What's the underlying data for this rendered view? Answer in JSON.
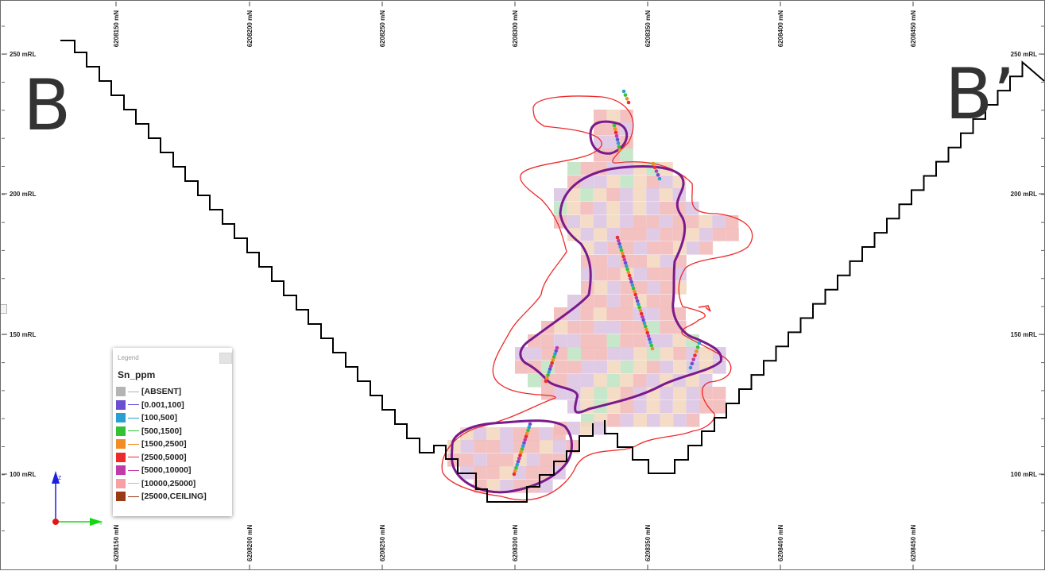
{
  "view": {
    "frame_border_color": "#6a6a6a",
    "section_labels": {
      "start": "B",
      "end": "B’"
    },
    "northing_ticks": [
      "6208150 mN",
      "6208200 mN",
      "6208250 mN",
      "6208300 mN",
      "6208350 mN",
      "6208400 mN",
      "6208450 mN"
    ],
    "elevation_ticks": [
      "250 mRL",
      "200 mRL",
      "150 mRL",
      "100 mRL"
    ]
  },
  "legend": {
    "title": "Legend",
    "variable": "Sn_ppm",
    "items": [
      {
        "label": "[ABSENT]",
        "color": "#b4b4b4"
      },
      {
        "label": "[0.001,100]",
        "color": "#6a4fd0"
      },
      {
        "label": "[100,500]",
        "color": "#2aa0d2"
      },
      {
        "label": "[500,1500]",
        "color": "#33c233"
      },
      {
        "label": "[1500,2500]",
        "color": "#f28c25"
      },
      {
        "label": "[2500,5000]",
        "color": "#ee2a2a"
      },
      {
        "label": "[5000,10000]",
        "color": "#c13aac"
      },
      {
        "label": "[10000,25000]",
        "color": "#f8a0a8"
      },
      {
        "label": "[25000,CEILING]",
        "color": "#9a3b18"
      }
    ]
  },
  "axis_triad": {
    "vertical_axis_label": "Z",
    "horizontal_axis_label": "Y",
    "vertical_color": "#1f1fe0",
    "horizontal_color": "#14d614",
    "origin_color": "#e01818"
  },
  "colors": {
    "pit_shell": "#000000",
    "outer_envelope": "#ee2a2a",
    "ore_shell": "#7a1a8c",
    "block_pink": "#f2b8b8",
    "block_purple": "#dcc4e4",
    "block_peach": "#f3d7be",
    "block_green": "#bfe4c4"
  }
}
